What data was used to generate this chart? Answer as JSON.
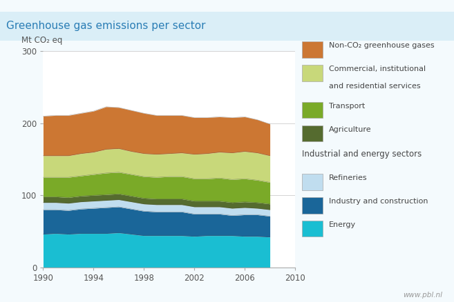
{
  "title": "Greenhouse gas emissions per sector",
  "ylabel": "Mt CO₂ eq",
  "years": [
    1990,
    1991,
    1992,
    1993,
    1994,
    1995,
    1996,
    1997,
    1998,
    1999,
    2000,
    2001,
    2002,
    2003,
    2004,
    2005,
    2006,
    2007,
    2008
  ],
  "series": {
    "Energy": [
      46,
      47,
      46,
      47,
      47,
      47,
      48,
      46,
      44,
      44,
      44,
      44,
      43,
      44,
      44,
      44,
      43,
      43,
      42
    ],
    "Industry_and_construction": [
      34,
      33,
      33,
      34,
      35,
      36,
      36,
      35,
      34,
      33,
      33,
      33,
      31,
      30,
      30,
      28,
      30,
      30,
      29
    ],
    "Refineries": [
      10,
      10,
      10,
      10,
      10,
      10,
      10,
      10,
      10,
      10,
      10,
      10,
      10,
      10,
      10,
      10,
      10,
      9,
      9
    ],
    "Agriculture": [
      8,
      8,
      8,
      8,
      8,
      8,
      8,
      8,
      8,
      8,
      8,
      8,
      8,
      8,
      8,
      8,
      8,
      8,
      8
    ],
    "Transport": [
      27,
      27,
      28,
      28,
      29,
      30,
      30,
      30,
      30,
      30,
      31,
      31,
      31,
      31,
      32,
      32,
      32,
      31,
      30
    ],
    "Commercial_institutional": [
      30,
      30,
      30,
      31,
      31,
      33,
      33,
      32,
      32,
      32,
      32,
      33,
      34,
      35,
      36,
      37,
      38,
      38,
      37
    ],
    "Non_CO2": [
      55,
      56,
      56,
      56,
      57,
      59,
      57,
      57,
      56,
      54,
      53,
      52,
      51,
      50,
      49,
      49,
      48,
      46,
      44
    ]
  },
  "colors": {
    "Energy": "#1abed2",
    "Industry_and_construction": "#1a6699",
    "Refineries": "#c0ddef",
    "Agriculture": "#556b2f",
    "Transport": "#7aaa28",
    "Commercial_institutional": "#c8d87a",
    "Non_CO2": "#cc7733"
  },
  "legend_labels": {
    "Non_CO2": "Non-CO₂ greenhouse gases",
    "Commercial_institutional": "Commercial, institutional\nand residential services",
    "Transport": "Transport",
    "Agriculture": "Agriculture",
    "Industrial_group": "Industrial and energy sectors",
    "Refineries": "Refineries",
    "Industry_and_construction": "Industry and construction",
    "Energy": "Energy"
  },
  "ylim": [
    0,
    300
  ],
  "yticks": [
    0,
    100,
    200,
    300
  ],
  "xlim": [
    1990,
    2010
  ],
  "xticks": [
    1990,
    1994,
    1998,
    2002,
    2006,
    2010
  ],
  "outer_bg": "#f4fafd",
  "title_bg": "#daeef7",
  "plot_bg": "#ffffff",
  "title_color": "#2a7db5",
  "watermark": "www.pbl.nl",
  "title_fontsize": 11,
  "axis_fontsize": 9
}
